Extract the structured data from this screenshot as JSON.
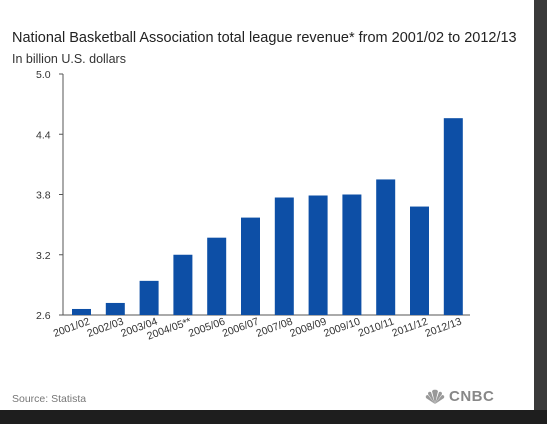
{
  "chart_data": {
    "type": "bar",
    "title": "National Basketball Association total league revenue* from 2001/02 to 2012/13",
    "subtitle": "In billion U.S. dollars",
    "categories": [
      "2001/02",
      "2002/03",
      "2003/04",
      "2004/05**",
      "2005/06",
      "2006/07",
      "2007/08",
      "2008/09",
      "2009/10",
      "2010/11",
      "2011/12",
      "2012/13"
    ],
    "values": [
      2.66,
      2.72,
      2.94,
      3.2,
      3.37,
      3.57,
      3.77,
      3.79,
      3.8,
      3.95,
      3.68,
      4.56
    ],
    "ylim": [
      2.6,
      5.0
    ],
    "yticks": [
      "2.6",
      "3.2",
      "3.8",
      "4.4",
      "5.0"
    ],
    "bar_color": "#0d4fa6",
    "grid": false
  },
  "footer": {
    "source": "Source: Statista",
    "logo_text": "CNBC",
    "logo_icon": "peacock-icon"
  }
}
